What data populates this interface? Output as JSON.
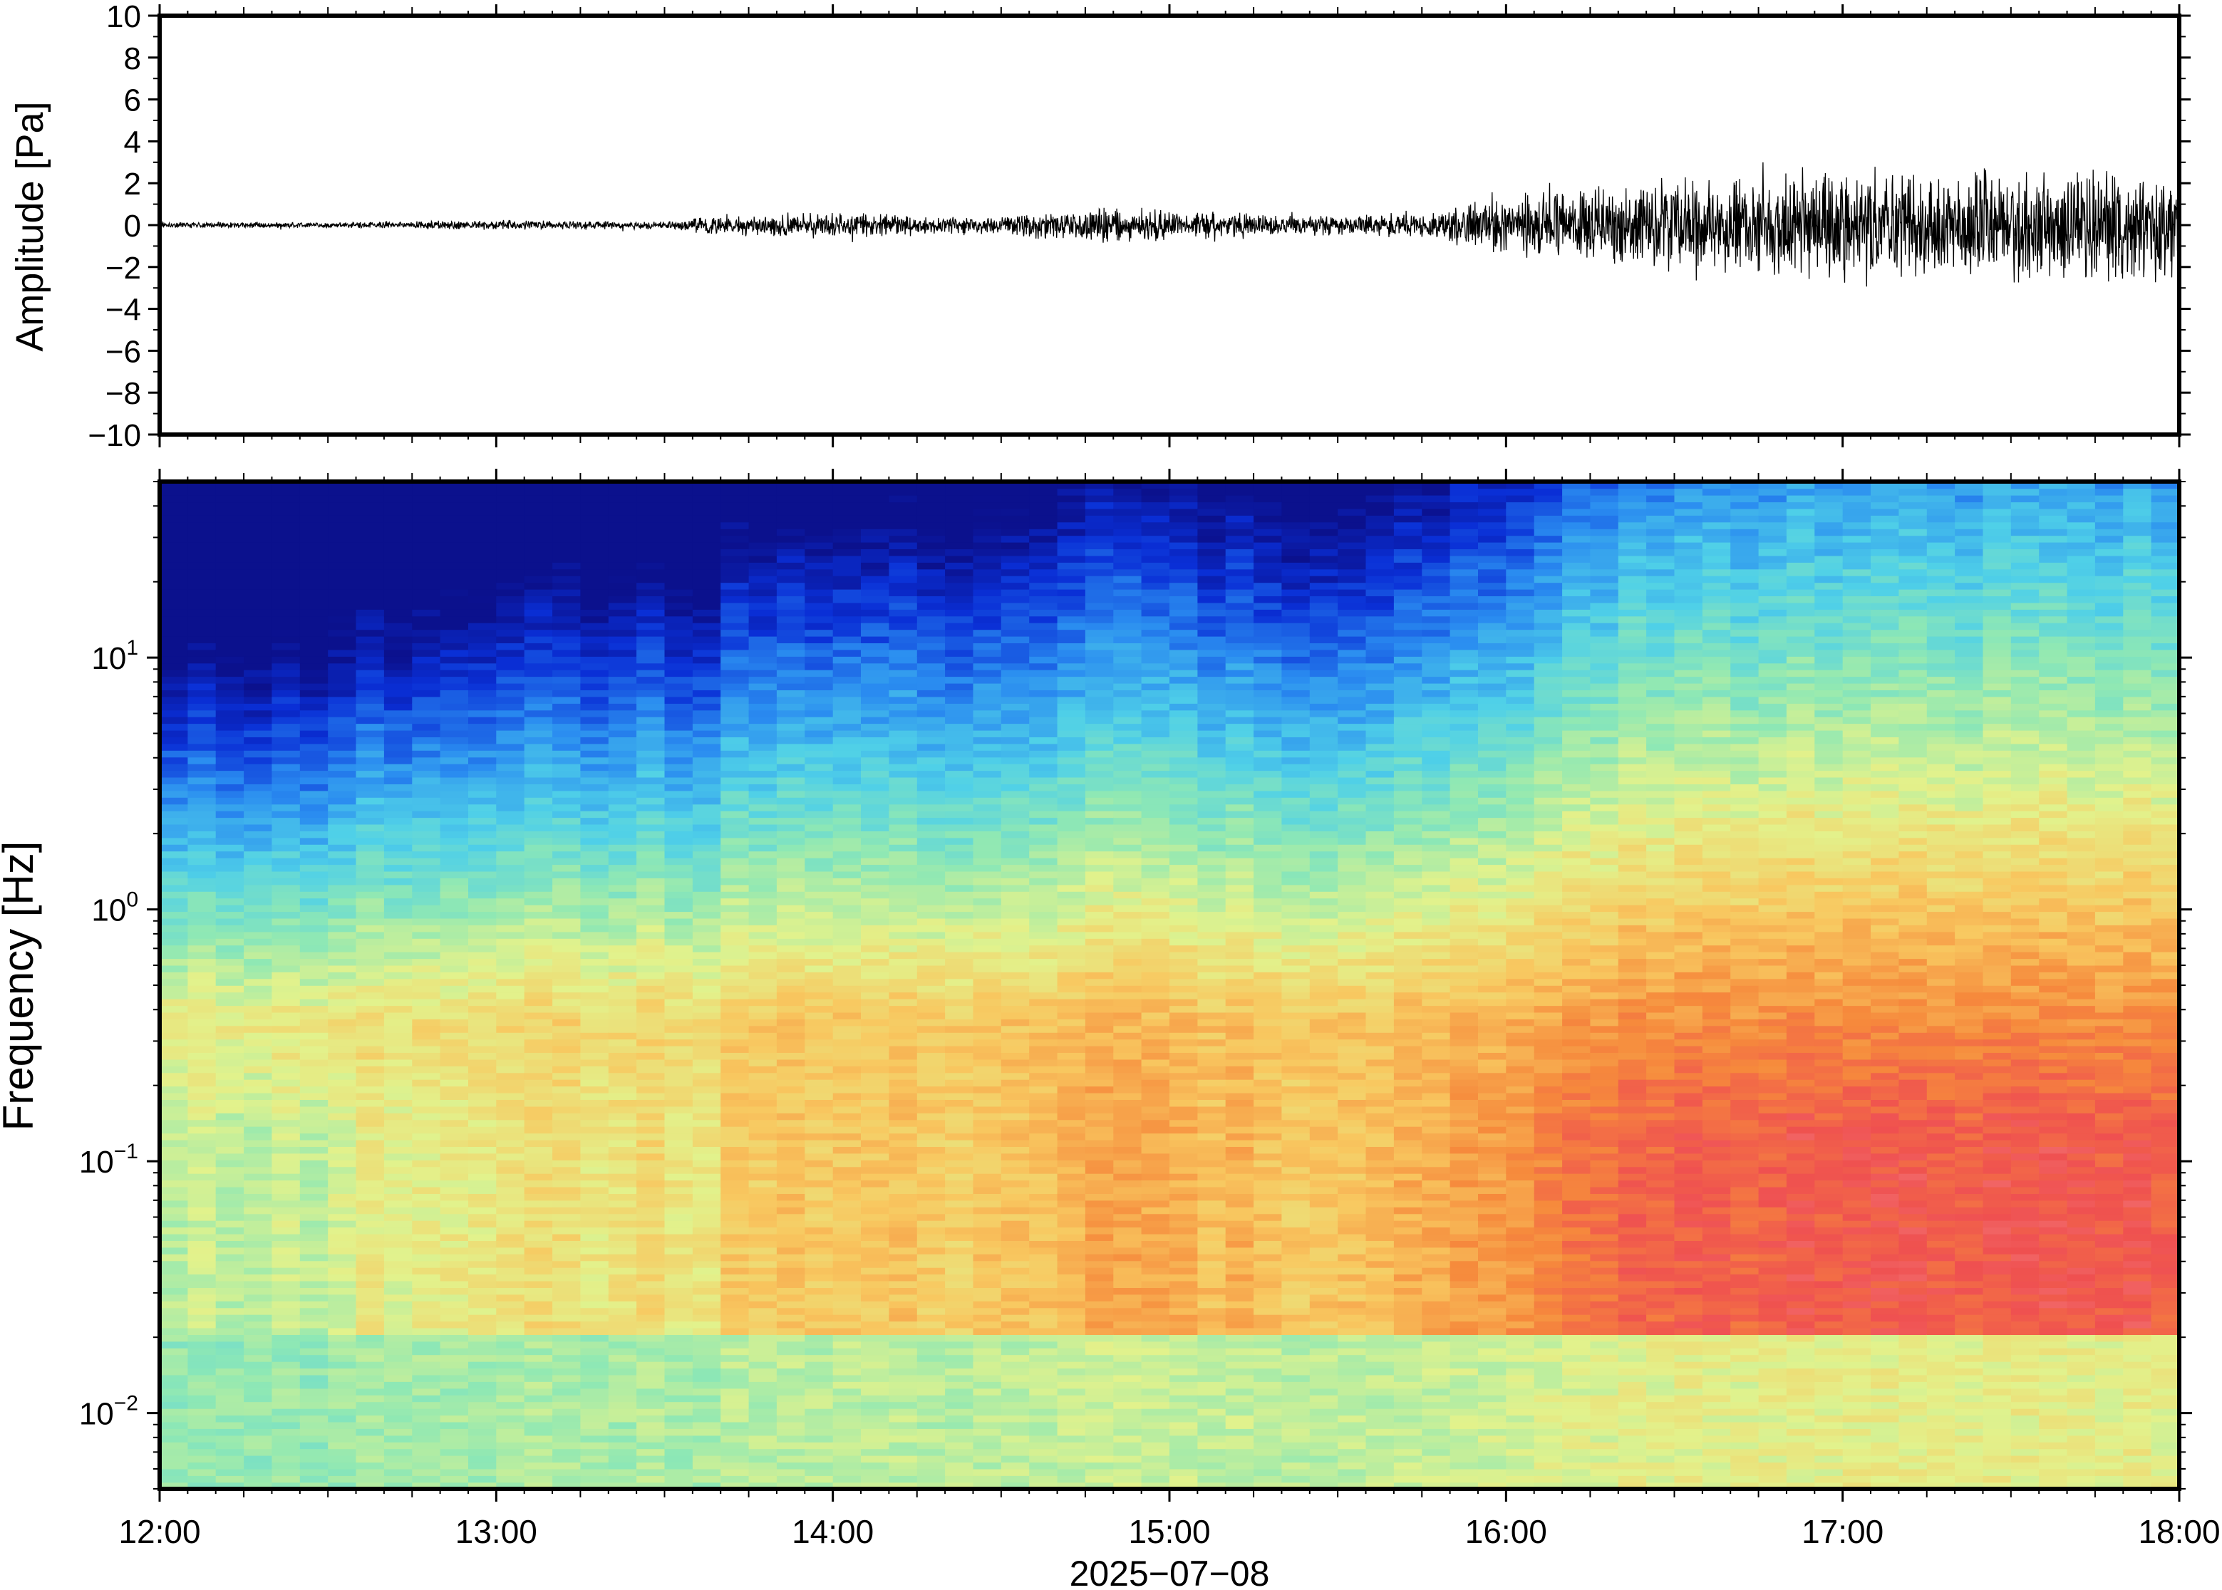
{
  "chart_data": [
    {
      "type": "line",
      "title": "",
      "xlabel": "",
      "ylabel": "Amplitude [Pa]",
      "xlim": [
        "12:00",
        "18:00"
      ],
      "ylim": [
        -10,
        10
      ],
      "y_ticks": [
        -10,
        -8,
        -6,
        -4,
        -2,
        0,
        2,
        4,
        6,
        8,
        10
      ],
      "y_tick_labels": [
        "−10",
        "−8",
        "−6",
        "−4",
        "−2",
        "0",
        "2",
        "4",
        "6",
        "8",
        "10"
      ],
      "series": [
        {
          "time_hours": [
            12.0,
            12.5,
            13.0,
            13.5,
            13.7,
            14.0,
            14.5,
            14.8,
            15.0,
            15.5,
            15.8,
            16.1,
            16.5,
            17.0,
            17.5,
            18.0
          ],
          "envelope_pa": [
            0.15,
            0.15,
            0.25,
            0.2,
            0.6,
            0.7,
            0.5,
            1.0,
            0.8,
            0.5,
            0.8,
            1.8,
            2.5,
            2.8,
            3.0,
            3.0
          ],
          "color": "#000000"
        }
      ],
      "grid": false
    },
    {
      "type": "heatmap",
      "title": "",
      "xlabel": "2025−07−08",
      "ylabel": "Frequency [Hz]",
      "xlim": [
        "12:00",
        "18:00"
      ],
      "x_ticks": [
        "12:00",
        "13:00",
        "14:00",
        "15:00",
        "16:00",
        "17:00",
        "18:00"
      ],
      "y_scale": "log",
      "ylim": [
        0.005,
        50
      ],
      "y_ticks": [
        0.01,
        0.1,
        1,
        10
      ],
      "y_tick_labels": [
        {
          "base": "10",
          "exp": "−2"
        },
        {
          "base": "10",
          "exp": "−1"
        },
        {
          "base": "10",
          "exp": "0"
        },
        {
          "base": "10",
          "exp": "1"
        }
      ],
      "colormap": [
        "#0b0a7d",
        "#0a2fd6",
        "#2a8cf0",
        "#4fd0e8",
        "#8fe8b4",
        "#e2f28c",
        "#f8c860",
        "#f68a3c",
        "#ef5050",
        "#f79a9a"
      ],
      "grid": false
    }
  ]
}
